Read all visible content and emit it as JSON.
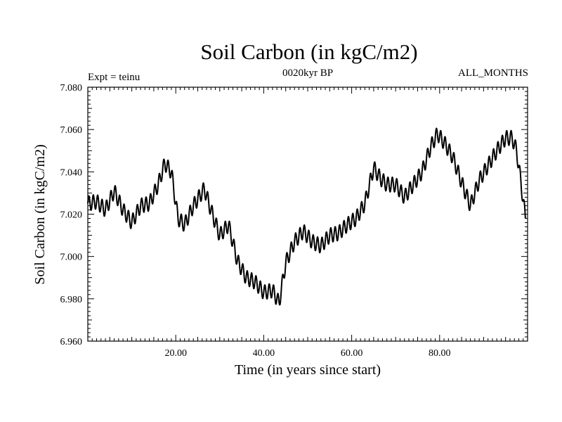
{
  "chart_data": {
    "type": "line",
    "title": "Soil Carbon (in kgC/m2)",
    "subtitle_left": "Expt = teinu",
    "subtitle_center": "0020kyr BP",
    "subtitle_right": "ALL_MONTHS",
    "xlabel": "Time (in years since start)",
    "ylabel": "Soil Carbon (in kgC/m2)",
    "xlim": [
      0,
      100
    ],
    "ylim": [
      6.96,
      7.08
    ],
    "xticks": [
      20,
      40,
      60,
      80
    ],
    "xtick_labels": [
      "20.00",
      "40.00",
      "60.00",
      "80.00"
    ],
    "yticks": [
      6.96,
      6.98,
      7.0,
      7.02,
      7.04,
      7.06,
      7.08
    ],
    "ytick_labels": [
      "6.960",
      "6.980",
      "7.000",
      "7.020",
      "7.040",
      "7.060",
      "7.080"
    ],
    "grid": false,
    "series": [
      {
        "name": "Soil Carbon",
        "color": "#000000",
        "seasonal_amplitude": 0.0035,
        "seasonal_period": 1,
        "trend_x": [
          0,
          2,
          4,
          6,
          8,
          10,
          12,
          14,
          16,
          17.5,
          19,
          20.5,
          22,
          24,
          26.5,
          28,
          30,
          32,
          34,
          36,
          38,
          40,
          42,
          43.5,
          45,
          47,
          49,
          51,
          53,
          55,
          57,
          59,
          61,
          63,
          65,
          66.5,
          68,
          70,
          72,
          74,
          76,
          78,
          79.5,
          81,
          83,
          85,
          87,
          89,
          91,
          93,
          95,
          96.5,
          97.5,
          98.5,
          99.5
        ],
        "trend_y": [
          7.025,
          7.026,
          7.022,
          7.031,
          7.022,
          7.016,
          7.024,
          7.025,
          7.034,
          7.044,
          7.04,
          7.018,
          7.015,
          7.024,
          7.032,
          7.022,
          7.01,
          7.015,
          6.998,
          6.99,
          6.988,
          6.983,
          6.984,
          6.978,
          6.997,
          7.007,
          7.012,
          7.007,
          7.005,
          7.01,
          7.011,
          7.015,
          7.018,
          7.025,
          7.042,
          7.037,
          7.034,
          7.034,
          7.028,
          7.034,
          7.04,
          7.052,
          7.058,
          7.054,
          7.047,
          7.035,
          7.024,
          7.036,
          7.043,
          7.05,
          7.056,
          7.056,
          7.05,
          7.035,
          7.018
        ]
      }
    ]
  }
}
